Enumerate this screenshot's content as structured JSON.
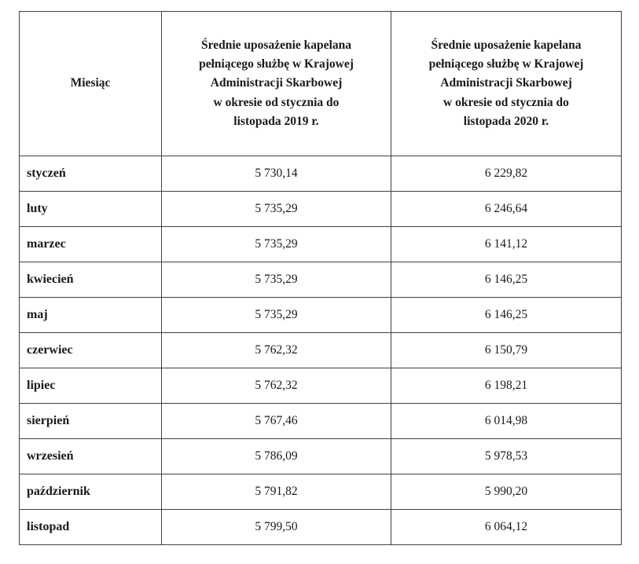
{
  "chart_data": {
    "type": "table",
    "columns": [
      "Miesiąc",
      "Średnie uposażenie kapelana\npełniącego służbę w Krajowej\nAdministracji Skarbowej\nw okresie od stycznia do\nlistopada 2019 r.",
      "Średnie uposażenie kapelana\npełniącego służbę w Krajowej\nAdministracji Skarbowej\nw okresie od stycznia do\nlistopada 2020 r."
    ],
    "rows": [
      [
        "styczeń",
        "5 730,14",
        "6 229,82"
      ],
      [
        "luty",
        "5 735,29",
        "6 246,64"
      ],
      [
        "marzec",
        "5 735,29",
        "6 141,12"
      ],
      [
        "kwiecień",
        "5 735,29",
        "6 146,25"
      ],
      [
        "maj",
        "5 735,29",
        "6 146,25"
      ],
      [
        "czerwiec",
        "5 762,32",
        "6 150,79"
      ],
      [
        "lipiec",
        "5 762,32",
        "6 198,21"
      ],
      [
        "sierpień",
        "5 767,46",
        "6 014,98"
      ],
      [
        "wrzesień",
        "5 786,09",
        "5 978,53"
      ],
      [
        "październik",
        "5 791,82",
        "5 990,20"
      ],
      [
        "listopad",
        "5 799,50",
        "6 064,12"
      ]
    ],
    "categories": [
      "styczeń",
      "luty",
      "marzec",
      "kwiecień",
      "maj",
      "czerwiec",
      "lipiec",
      "sierpień",
      "wrzesień",
      "październik",
      "listopad"
    ],
    "series": [
      {
        "name": "Średnie uposażenie kapelana pełniącego służbę w Krajowej Administracji Skarbowej w okresie od stycznia do listopada 2019 r.",
        "values": [
          5730.14,
          5735.29,
          5735.29,
          5735.29,
          5735.29,
          5762.32,
          5762.32,
          5767.46,
          5786.09,
          5791.82,
          5799.5
        ]
      },
      {
        "name": "Średnie uposażenie kapelana pełniącego służbę w Krajowej Administracji Skarbowej w okresie od stycznia do listopada 2020 r.",
        "values": [
          6229.82,
          6246.64,
          6141.12,
          6146.25,
          6146.25,
          6150.79,
          6198.21,
          6014.98,
          5978.53,
          5990.2,
          6064.12
        ]
      }
    ],
    "layout": {
      "grid": "full-borders",
      "legend": "none"
    }
  },
  "colors": {
    "border": "#404040",
    "text": "#1a1a1a",
    "background": "#ffffff"
  }
}
